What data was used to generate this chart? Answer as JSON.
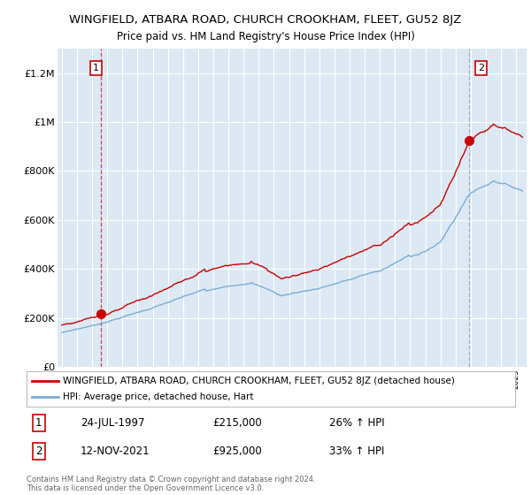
{
  "title": "WINGFIELD, ATBARA ROAD, CHURCH CROOKHAM, FLEET, GU52 8JZ",
  "subtitle": "Price paid vs. HM Land Registry's House Price Index (HPI)",
  "plot_bg_color": "#dce9f5",
  "ylim": [
    0,
    1300000
  ],
  "yticks": [
    0,
    200000,
    400000,
    600000,
    800000,
    1000000,
    1200000
  ],
  "ytick_labels": [
    "£0",
    "£200K",
    "£400K",
    "£600K",
    "£800K",
    "£1M",
    "£1.2M"
  ],
  "sale1_year": 1997.56,
  "sale1_price": 215000,
  "sale2_year": 2021.87,
  "sale2_price": 925000,
  "legend_entries": [
    "WINGFIELD, ATBARA ROAD, CHURCH CROOKHAM, FLEET, GU52 8JZ (detached house)",
    "HPI: Average price, detached house, Hart"
  ],
  "annotation1_date": "24-JUL-1997",
  "annotation1_price": "£215,000",
  "annotation1_hpi": "26% ↑ HPI",
  "annotation2_date": "12-NOV-2021",
  "annotation2_price": "£925,000",
  "annotation2_hpi": "33% ↑ HPI",
  "footer": "Contains HM Land Registry data © Crown copyright and database right 2024.\nThis data is licensed under the Open Government Licence v3.0.",
  "line_color_house": "#cc0000",
  "line_color_hpi": "#7aadd4",
  "vline1_color": "#cc0000",
  "vline2_color": "#888888"
}
